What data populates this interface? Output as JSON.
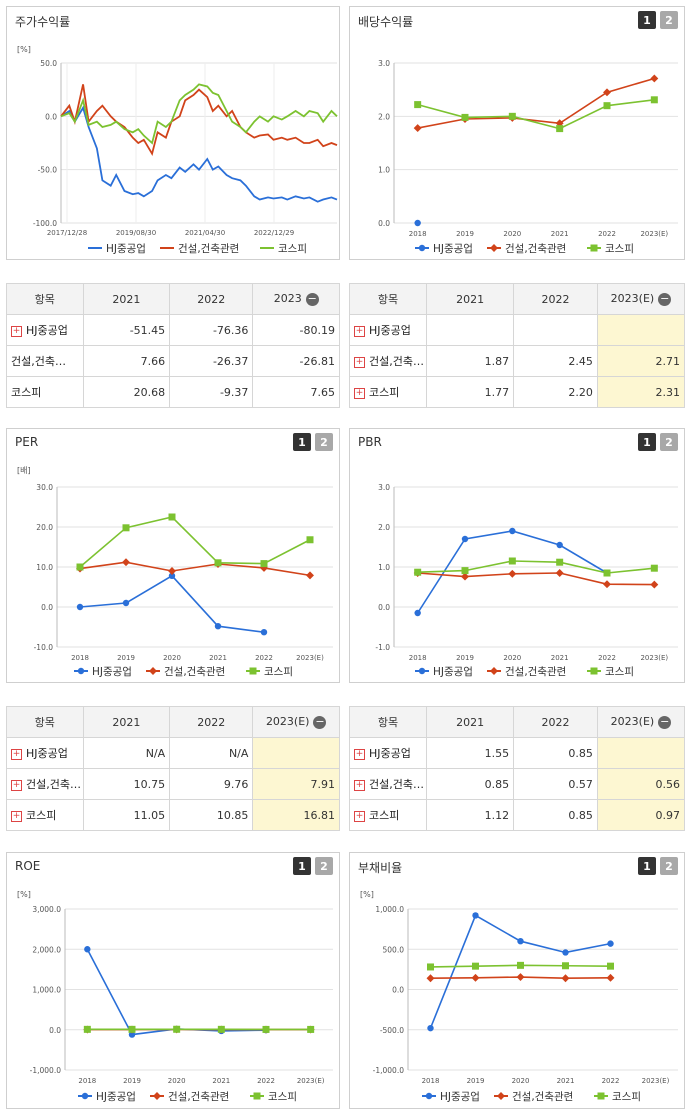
{
  "colors": {
    "hj": "#2a6fd8",
    "con": "#d1431a",
    "kospi": "#7cc230"
  },
  "legend": [
    "HJ중공업",
    "건설,건축관련",
    "코스피"
  ],
  "panels": {
    "stock": {
      "title": "주가수익률",
      "unit": "[%]",
      "tabs": []
    },
    "div": {
      "title": "배당수익률",
      "unit": "",
      "tabs": [
        "1",
        "2"
      ]
    },
    "per": {
      "title": "PER",
      "unit": "[배]",
      "tabs": [
        "1",
        "2"
      ]
    },
    "pbr": {
      "title": "PBR",
      "unit": "",
      "tabs": [
        "1",
        "2"
      ]
    },
    "roe": {
      "title": "ROE",
      "unit": "[%]",
      "tabs": [
        "1",
        "2"
      ]
    },
    "debt": {
      "title": "부채비율",
      "unit": "[%]",
      "tabs": [
        "1",
        "2"
      ]
    }
  },
  "tables": {
    "t1": {
      "headers": [
        "항목",
        "2021",
        "2022",
        "2023"
      ],
      "rows": [
        {
          "label": "HJ중공업",
          "plus": true,
          "values": [
            "-51.45",
            "-76.36",
            "-80.19"
          ]
        },
        {
          "label": "건설,건축…",
          "plus": false,
          "values": [
            "7.66",
            "-26.37",
            "-26.81"
          ]
        },
        {
          "label": "코스피",
          "plus": false,
          "values": [
            "20.68",
            "-9.37",
            "7.65"
          ]
        }
      ]
    },
    "t2": {
      "headers": [
        "항목",
        "2021",
        "2022",
        "2023(E)"
      ],
      "rows": [
        {
          "label": "HJ중공업",
          "plus": true,
          "values": [
            "",
            "",
            ""
          ]
        },
        {
          "label": "건설,건축…",
          "plus": true,
          "values": [
            "1.87",
            "2.45",
            "2.71"
          ]
        },
        {
          "label": "코스피",
          "plus": true,
          "values": [
            "1.77",
            "2.20",
            "2.31"
          ]
        }
      ]
    },
    "t3": {
      "headers": [
        "항목",
        "2021",
        "2022",
        "2023(E)"
      ],
      "rows": [
        {
          "label": "HJ중공업",
          "plus": true,
          "values": [
            "N/A",
            "N/A",
            ""
          ]
        },
        {
          "label": "건설,건축…",
          "plus": true,
          "values": [
            "10.75",
            "9.76",
            "7.91"
          ]
        },
        {
          "label": "코스피",
          "plus": true,
          "values": [
            "11.05",
            "10.85",
            "16.81"
          ]
        }
      ]
    },
    "t4": {
      "headers": [
        "항목",
        "2021",
        "2022",
        "2023(E)"
      ],
      "rows": [
        {
          "label": "HJ중공업",
          "plus": true,
          "values": [
            "1.55",
            "0.85",
            ""
          ]
        },
        {
          "label": "건설,건축…",
          "plus": true,
          "values": [
            "0.85",
            "0.57",
            "0.56"
          ]
        },
        {
          "label": "코스피",
          "plus": true,
          "values": [
            "1.12",
            "0.85",
            "0.97"
          ]
        }
      ]
    }
  },
  "chart_data": [
    {
      "id": "stock",
      "type": "line",
      "title": "주가수익률",
      "ylabel": "[%]",
      "ylim": [
        -100,
        50
      ],
      "yticks": [
        "50.0",
        "0.0",
        "-50.0",
        "-100.0"
      ],
      "xticks": [
        "2017/12/28",
        "2019/08/30",
        "2021/04/30",
        "2022/12/29"
      ],
      "x": [
        0,
        0.03,
        0.05,
        0.08,
        0.1,
        0.13,
        0.15,
        0.18,
        0.2,
        0.23,
        0.26,
        0.28,
        0.3,
        0.33,
        0.35,
        0.38,
        0.4,
        0.43,
        0.45,
        0.48,
        0.5,
        0.53,
        0.55,
        0.57,
        0.6,
        0.62,
        0.65,
        0.67,
        0.7,
        0.72,
        0.75,
        0.77,
        0.8,
        0.82,
        0.85,
        0.88,
        0.9,
        0.93,
        0.95,
        0.98,
        1.0
      ],
      "series": [
        {
          "name": "HJ중공업",
          "values": [
            0,
            5,
            -5,
            8,
            -10,
            -30,
            -60,
            -65,
            -55,
            -70,
            -73,
            -72,
            -75,
            -70,
            -60,
            -55,
            -58,
            -48,
            -52,
            -45,
            -50,
            -40,
            -50,
            -47,
            -55,
            -58,
            -60,
            -65,
            -75,
            -78,
            -76,
            -77,
            -76,
            -78,
            -75,
            -77,
            -76,
            -80,
            -78,
            -76,
            -78
          ]
        },
        {
          "name": "건설,건축관련",
          "values": [
            0,
            10,
            -5,
            30,
            -5,
            5,
            10,
            0,
            -5,
            -10,
            -20,
            -25,
            -22,
            -35,
            -15,
            -20,
            -5,
            0,
            15,
            20,
            25,
            18,
            5,
            10,
            0,
            5,
            -10,
            -15,
            -20,
            -18,
            -17,
            -22,
            -20,
            -22,
            -20,
            -25,
            -25,
            -22,
            -28,
            -25,
            -27
          ]
        },
        {
          "name": "코스피",
          "values": [
            0,
            3,
            -5,
            15,
            -8,
            -5,
            -10,
            -8,
            -5,
            -12,
            -15,
            -12,
            -18,
            -25,
            -5,
            -10,
            -5,
            15,
            20,
            25,
            30,
            28,
            22,
            20,
            5,
            -5,
            -10,
            -15,
            -5,
            0,
            -5,
            0,
            -3,
            0,
            5,
            0,
            5,
            3,
            -5,
            5,
            0
          ]
        }
      ]
    },
    {
      "id": "div",
      "type": "line",
      "title": "배당수익률",
      "ylim": [
        0,
        3
      ],
      "yticks": [
        "3.0",
        "2.0",
        "1.0",
        "0.0"
      ],
      "categories": [
        "2018",
        "2019",
        "2020",
        "2021",
        "2022",
        "2023(E)"
      ],
      "series": [
        {
          "name": "HJ중공업",
          "values": [
            0.0,
            null,
            null,
            null,
            null,
            null
          ]
        },
        {
          "name": "건설,건축관련",
          "values": [
            1.78,
            1.95,
            1.97,
            1.87,
            2.45,
            2.71
          ]
        },
        {
          "name": "코스피",
          "values": [
            2.22,
            1.98,
            2.0,
            1.77,
            2.2,
            2.31
          ]
        }
      ]
    },
    {
      "id": "per",
      "type": "line",
      "title": "PER",
      "ylabel": "[배]",
      "ylim": [
        -10,
        30
      ],
      "yticks": [
        "30.0",
        "20.0",
        "10.0",
        "0.0",
        "-10.0"
      ],
      "categories": [
        "2018",
        "2019",
        "2020",
        "2021",
        "2022",
        "2023(E)"
      ],
      "series": [
        {
          "name": "HJ중공업",
          "values": [
            0.0,
            1.0,
            7.8,
            -4.8,
            -6.3,
            null
          ]
        },
        {
          "name": "건설,건축관련",
          "values": [
            9.6,
            11.2,
            9.0,
            10.75,
            9.76,
            7.91
          ]
        },
        {
          "name": "코스피",
          "values": [
            10.0,
            19.8,
            22.5,
            11.05,
            10.85,
            16.81
          ]
        }
      ]
    },
    {
      "id": "pbr",
      "type": "line",
      "title": "PBR",
      "ylim": [
        -1,
        3
      ],
      "yticks": [
        "3.0",
        "2.0",
        "1.0",
        "0.0",
        "-1.0"
      ],
      "categories": [
        "2018",
        "2019",
        "2020",
        "2021",
        "2022",
        "2023(E)"
      ],
      "series": [
        {
          "name": "HJ중공업",
          "values": [
            -0.15,
            1.7,
            1.9,
            1.55,
            0.85,
            null
          ]
        },
        {
          "name": "건설,건축관련",
          "values": [
            0.85,
            0.76,
            0.83,
            0.85,
            0.57,
            0.56
          ]
        },
        {
          "name": "코스피",
          "values": [
            0.87,
            0.91,
            1.15,
            1.12,
            0.85,
            0.97
          ]
        }
      ]
    },
    {
      "id": "roe",
      "type": "line",
      "title": "ROE",
      "ylabel": "[%]",
      "ylim": [
        -1000,
        3000
      ],
      "yticks": [
        "3,000.0",
        "2,000.0",
        "1,000.0",
        "0.0",
        "-1,000.0"
      ],
      "categories": [
        "2018",
        "2019",
        "2020",
        "2021",
        "2022",
        "2023(E)"
      ],
      "series": [
        {
          "name": "HJ중공업",
          "values": [
            2000,
            -120,
            20,
            -30,
            -10,
            null
          ]
        },
        {
          "name": "건설,건축관련",
          "values": [
            5,
            5,
            8,
            5,
            5,
            5
          ]
        },
        {
          "name": "코스피",
          "values": [
            10,
            10,
            12,
            10,
            8,
            8
          ]
        }
      ]
    },
    {
      "id": "debt",
      "type": "line",
      "title": "부채비율",
      "ylabel": "[%]",
      "ylim": [
        -1000,
        1000
      ],
      "yticks": [
        "1,000.0",
        "500.0",
        "0.0",
        "-500.0",
        "-1,000.0"
      ],
      "categories": [
        "2018",
        "2019",
        "2020",
        "2021",
        "2022",
        "2023(E)"
      ],
      "series": [
        {
          "name": "HJ중공업",
          "values": [
            -480,
            920,
            600,
            460,
            570,
            null
          ]
        },
        {
          "name": "건설,건축관련",
          "values": [
            140,
            145,
            155,
            140,
            145,
            null
          ]
        },
        {
          "name": "코스피",
          "values": [
            280,
            290,
            300,
            295,
            290,
            null
          ]
        }
      ]
    }
  ]
}
